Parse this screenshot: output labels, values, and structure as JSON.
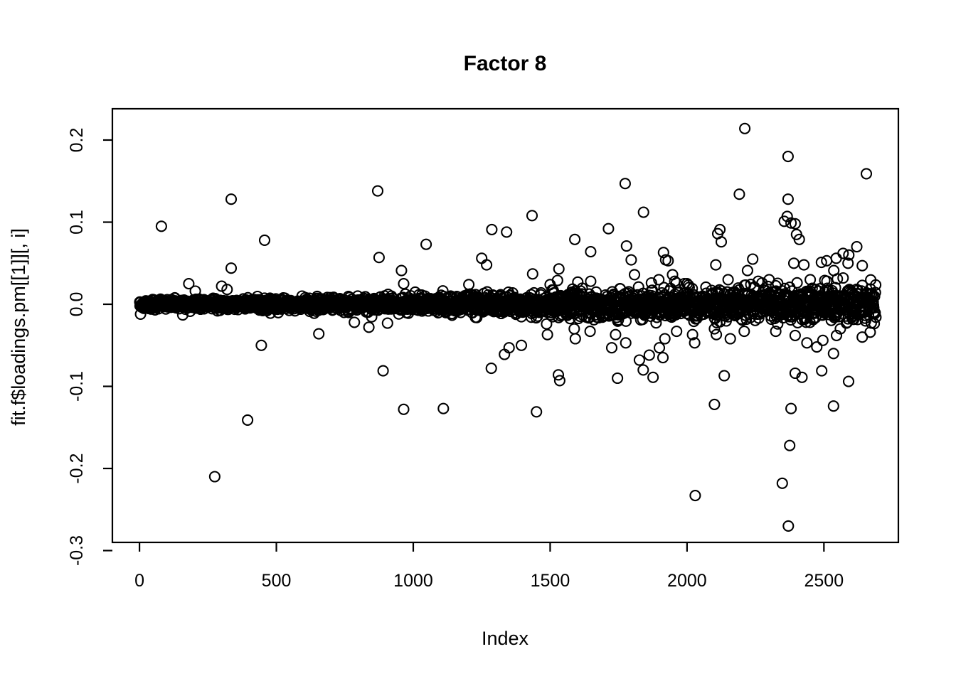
{
  "window": {
    "kind": "R graphics scatter plot",
    "background": "#ffffff",
    "foreground": "#000000"
  },
  "chart_data": {
    "type": "scatter",
    "title": "Factor 8",
    "xlabel": "Index",
    "ylabel": "fit.f$loadings.pm[[1]][, i]",
    "marker": "open-circle",
    "marker_color": "#000000",
    "grid": "off",
    "legend": "none",
    "xlim": [
      -99,
      2772
    ],
    "ylim": [
      -0.3,
      0.239
    ],
    "x_tick_labels": [
      "0",
      "500",
      "1000",
      "1500",
      "2000",
      "2500"
    ],
    "x_tick_values": [
      0,
      500,
      1000,
      1500,
      2000,
      2500
    ],
    "y_tick_labels": [
      "0.2",
      "0.1",
      "0.0",
      "-0.1",
      "-0.2",
      "-0.3"
    ],
    "y_tick_values": [
      0.2,
      0.1,
      0.0,
      -0.1,
      -0.2,
      -0.3
    ],
    "n_points": 2690,
    "summary": "Approximately 2690 factor loadings plotted against index; a dense black band hugs y=0 whose spread grows with index, with scattered outliers up to +0.214 and down to -0.270 concentrated at higher indices.",
    "dense_band": {
      "n": 2690,
      "x_start": 1,
      "x_end": 2690,
      "mean": 0,
      "sd_at_start": 0.0028,
      "sd_at_end": 0.0123,
      "sd_exponent": 1.4,
      "tail_every": 53,
      "tail_factor": 1.6,
      "seed": 42
    },
    "outliers": [
      [
        80,
        0.095
      ],
      [
        180,
        0.025
      ],
      [
        204,
        0.016
      ],
      [
        300,
        0.022
      ],
      [
        320,
        0.018
      ],
      [
        335,
        0.128
      ],
      [
        335,
        0.044
      ],
      [
        457,
        0.078
      ],
      [
        870,
        0.138
      ],
      [
        875,
        0.057
      ],
      [
        957,
        0.041
      ],
      [
        965,
        0.025
      ],
      [
        1047,
        0.073
      ],
      [
        1203,
        0.024
      ],
      [
        1250,
        0.056
      ],
      [
        1268,
        0.048
      ],
      [
        1287,
        0.091
      ],
      [
        1341,
        0.088
      ],
      [
        1434,
        0.108
      ],
      [
        1436,
        0.037
      ],
      [
        1500,
        0.024
      ],
      [
        1527,
        0.029
      ],
      [
        1532,
        0.043
      ],
      [
        1590,
        0.079
      ],
      [
        1601,
        0.027
      ],
      [
        1612,
        0.016
      ],
      [
        1648,
        0.064
      ],
      [
        1648,
        0.028
      ],
      [
        1713,
        0.092
      ],
      [
        1774,
        0.147
      ],
      [
        1779,
        0.071
      ],
      [
        1796,
        0.054
      ],
      [
        1808,
        0.036
      ],
      [
        1841,
        0.112
      ],
      [
        1870,
        0.026
      ],
      [
        1897,
        0.03
      ],
      [
        1914,
        0.063
      ],
      [
        1922,
        0.054
      ],
      [
        1931,
        0.053
      ],
      [
        1947,
        0.036
      ],
      [
        1955,
        0.028
      ],
      [
        2000,
        0.025
      ],
      [
        2105,
        0.048
      ],
      [
        2112,
        0.086
      ],
      [
        2120,
        0.091
      ],
      [
        2125,
        0.076
      ],
      [
        2150,
        0.03
      ],
      [
        2191,
        0.134
      ],
      [
        2211,
        0.214
      ],
      [
        2221,
        0.041
      ],
      [
        2240,
        0.055
      ],
      [
        2260,
        0.028
      ],
      [
        2274,
        0.026
      ],
      [
        2300,
        0.03
      ],
      [
        2355,
        0.101
      ],
      [
        2366,
        0.107
      ],
      [
        2369,
        0.18
      ],
      [
        2369,
        0.128
      ],
      [
        2380,
        0.099
      ],
      [
        2395,
        0.098
      ],
      [
        2390,
        0.05
      ],
      [
        2400,
        0.085
      ],
      [
        2410,
        0.079
      ],
      [
        2427,
        0.048
      ],
      [
        2450,
        0.03
      ],
      [
        2470,
        0.018
      ],
      [
        2503,
        0.029
      ],
      [
        2510,
        0.053
      ],
      [
        2536,
        0.041
      ],
      [
        2545,
        0.056
      ],
      [
        2570,
        0.062
      ],
      [
        2588,
        0.05
      ],
      [
        2591,
        0.06
      ],
      [
        2620,
        0.07
      ],
      [
        2640,
        0.047
      ],
      [
        2655,
        0.159
      ],
      [
        4,
        -0.012
      ],
      [
        158,
        -0.013
      ],
      [
        275,
        -0.21
      ],
      [
        395,
        -0.141
      ],
      [
        445,
        -0.05
      ],
      [
        655,
        -0.036
      ],
      [
        785,
        -0.022
      ],
      [
        838,
        -0.028
      ],
      [
        890,
        -0.081
      ],
      [
        906,
        -0.023
      ],
      [
        965,
        -0.128
      ],
      [
        1110,
        -0.127
      ],
      [
        1285,
        -0.078
      ],
      [
        1333,
        -0.061
      ],
      [
        1350,
        -0.053
      ],
      [
        1395,
        -0.05
      ],
      [
        1450,
        -0.131
      ],
      [
        1487,
        -0.024
      ],
      [
        1490,
        -0.037
      ],
      [
        1530,
        -0.086
      ],
      [
        1535,
        -0.093
      ],
      [
        1588,
        -0.03
      ],
      [
        1592,
        -0.042
      ],
      [
        1646,
        -0.033
      ],
      [
        1725,
        -0.053
      ],
      [
        1739,
        -0.037
      ],
      [
        1746,
        -0.09
      ],
      [
        1776,
        -0.047
      ],
      [
        1826,
        -0.068
      ],
      [
        1840,
        -0.08
      ],
      [
        1862,
        -0.062
      ],
      [
        1876,
        -0.089
      ],
      [
        1899,
        -0.053
      ],
      [
        1912,
        -0.065
      ],
      [
        1919,
        -0.042
      ],
      [
        1962,
        -0.033
      ],
      [
        2020,
        -0.037
      ],
      [
        2028,
        -0.047
      ],
      [
        2030,
        -0.233
      ],
      [
        2100,
        -0.122
      ],
      [
        2100,
        -0.03
      ],
      [
        2107,
        -0.037
      ],
      [
        2136,
        -0.087
      ],
      [
        2158,
        -0.042
      ],
      [
        2209,
        -0.033
      ],
      [
        2324,
        -0.033
      ],
      [
        2331,
        -0.024
      ],
      [
        2348,
        -0.218
      ],
      [
        2370,
        -0.27
      ],
      [
        2375,
        -0.172
      ],
      [
        2380,
        -0.127
      ],
      [
        2395,
        -0.084
      ],
      [
        2395,
        -0.038
      ],
      [
        2420,
        -0.089
      ],
      [
        2438,
        -0.047
      ],
      [
        2474,
        -0.052
      ],
      [
        2492,
        -0.081
      ],
      [
        2496,
        -0.044
      ],
      [
        2535,
        -0.124
      ],
      [
        2535,
        -0.06
      ],
      [
        2546,
        -0.038
      ],
      [
        2560,
        -0.03
      ],
      [
        2590,
        -0.094
      ],
      [
        2640,
        -0.04
      ],
      [
        2669,
        -0.034
      ]
    ]
  }
}
